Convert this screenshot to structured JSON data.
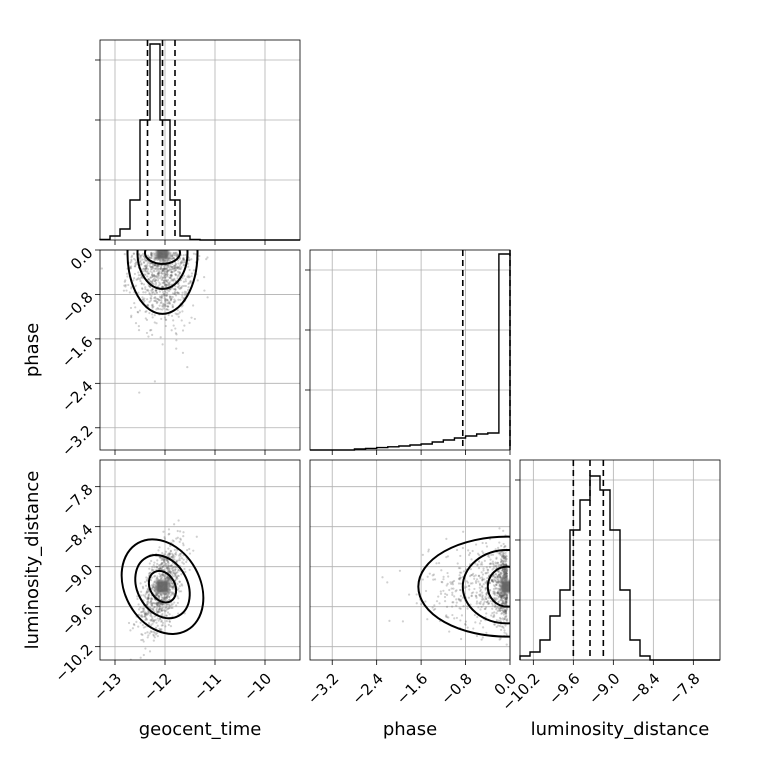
{
  "chart_data": {
    "type": "corner",
    "parameters": [
      "geocent_time",
      "phase",
      "luminosity_distance"
    ],
    "ranges": {
      "geocent_time": [
        -13.3,
        -9.3
      ],
      "phase": [
        -3.6,
        0.0
      ],
      "luminosity_distance": [
        -10.4,
        -7.4
      ]
    },
    "ticks": {
      "geocent_time": {
        "values": [
          -13,
          -12,
          -11,
          -10
        ],
        "labels": [
          "−13",
          "−12",
          "−11",
          "−10"
        ]
      },
      "phase": {
        "values": [
          -3.2,
          -2.4,
          -1.6,
          -0.8,
          0.0
        ],
        "labels": [
          "−3.2",
          "−2.4",
          "−1.6",
          "−0.8",
          "0.0"
        ]
      },
      "luminosity_distance": {
        "values": [
          -10.2,
          -9.6,
          -9.0,
          -8.4,
          -7.8
        ],
        "labels": [
          "−10.2",
          "−9.6",
          "−9.0",
          "−8.4",
          "−7.8"
        ]
      }
    },
    "grid": true,
    "diagonal": [
      {
        "parameter": "geocent_time",
        "bin_edges": [
          -13.3,
          -13.1,
          -12.9,
          -12.7,
          -12.5,
          -12.3,
          -12.1,
          -11.9,
          -11.7,
          -11.5,
          -11.3,
          -11.1,
          -10.9,
          -10.7,
          -10.5,
          -10.3,
          -10.1,
          -9.9,
          -9.7,
          -9.5,
          -9.3
        ],
        "heights": [
          0.003,
          0.02,
          0.055,
          0.2,
          0.6,
          0.98,
          0.6,
          0.2,
          0.02,
          0.003,
          0,
          0,
          0,
          0,
          0,
          0,
          0,
          0,
          0,
          0
        ],
        "quantiles": [
          -12.35,
          -12.05,
          -11.8
        ]
      },
      {
        "parameter": "phase",
        "bin_edges": [
          -3.6,
          -3.4,
          -3.2,
          -3.0,
          -2.8,
          -2.6,
          -2.4,
          -2.2,
          -2.0,
          -1.8,
          -1.6,
          -1.4,
          -1.2,
          -1.0,
          -0.8,
          -0.6,
          -0.4,
          -0.2,
          0.0
        ],
        "heights": [
          0,
          0,
          0,
          0,
          0.005,
          0.008,
          0.012,
          0.016,
          0.02,
          0.025,
          0.03,
          0.04,
          0.05,
          0.06,
          0.07,
          0.08,
          0.085,
          0.98
        ],
        "quantiles": [
          -0.85,
          0.0
        ]
      },
      {
        "parameter": "luminosity_distance",
        "bin_edges": [
          -10.4,
          -10.25,
          -10.1,
          -9.95,
          -9.8,
          -9.65,
          -9.5,
          -9.35,
          -9.2,
          -9.05,
          -8.9,
          -8.75,
          -8.6,
          -8.45,
          -8.3,
          -8.15,
          -8.0,
          -7.85,
          -7.7,
          -7.55,
          -7.4
        ],
        "heights": [
          0.02,
          0.04,
          0.1,
          0.22,
          0.35,
          0.65,
          0.8,
          0.92,
          0.85,
          0.65,
          0.35,
          0.1,
          0.02,
          0,
          0,
          0,
          0,
          0,
          0,
          0
        ],
        "quantiles": [
          -9.6,
          -9.35,
          -9.15
        ]
      }
    ],
    "off_diagonal": [
      {
        "x": "geocent_time",
        "y": "phase",
        "center": [
          -12.05,
          -0.05
        ],
        "spread": [
          0.3,
          0.6
        ],
        "contours": [
          [
            0.35,
            0.2
          ],
          [
            0.5,
            0.65
          ],
          [
            0.7,
            1.1
          ]
        ]
      },
      {
        "x": "geocent_time",
        "y": "luminosity_distance",
        "center": [
          -12.05,
          -9.3
        ],
        "spread": [
          0.28,
          0.28
        ],
        "rotation": 0.7,
        "contours": [
          [
            0.25,
            0.25
          ],
          [
            0.5,
            0.5
          ],
          [
            0.75,
            0.75
          ]
        ]
      },
      {
        "x": "phase",
        "y": "luminosity_distance",
        "center": [
          -0.05,
          -9.3
        ],
        "spread": [
          0.7,
          0.3
        ],
        "contours": [
          [
            0.35,
            0.3
          ],
          [
            0.8,
            0.55
          ],
          [
            1.6,
            0.75
          ]
        ]
      }
    ]
  }
}
